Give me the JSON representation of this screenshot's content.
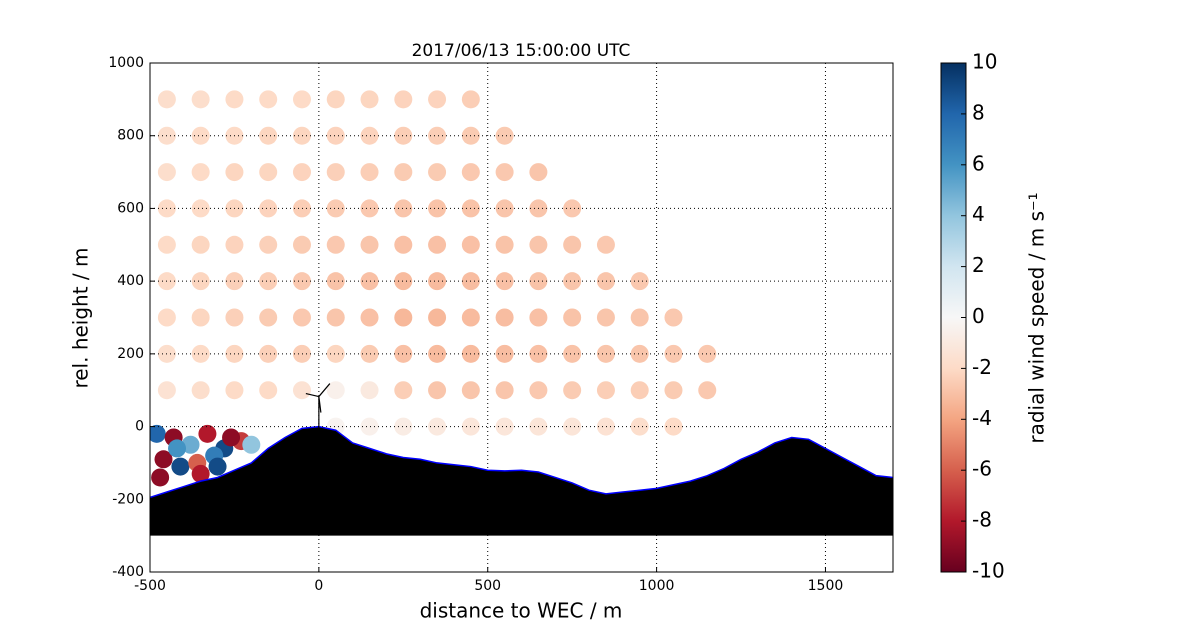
{
  "chart_data": {
    "type": "scatter",
    "title": "2017/06/13 15:00:00 UTC",
    "x_label": "distance to WEC / m",
    "y_label": "rel. height / m",
    "colorbar_label": "radial wind speed / m s⁻¹",
    "xlim": [
      -500,
      1700
    ],
    "ylim": [
      -400,
      1000
    ],
    "xticks": [
      -500,
      0,
      500,
      1000,
      1500
    ],
    "yticks": [
      -400,
      -200,
      0,
      200,
      400,
      600,
      800,
      1000
    ],
    "grid": true,
    "clim": [
      -10,
      10
    ],
    "cticks": [
      -10,
      -8,
      -6,
      -4,
      -2,
      0,
      2,
      4,
      6,
      8,
      10
    ],
    "colormap": [
      "#67001f",
      "#b2182b",
      "#d6604d",
      "#f4a582",
      "#fddbc7",
      "#f7f7f7",
      "#d1e5f0",
      "#92c5de",
      "#4393c3",
      "#2166ac",
      "#053061"
    ],
    "points": {
      "x": [
        -450,
        -350,
        -250,
        -150,
        -50,
        50,
        150,
        250,
        350,
        450,
        -450,
        -350,
        -250,
        -150,
        -50,
        50,
        150,
        250,
        350,
        450,
        550,
        -450,
        -350,
        -250,
        -150,
        -50,
        50,
        150,
        250,
        350,
        450,
        550,
        650,
        -450,
        -350,
        -250,
        -150,
        -50,
        50,
        150,
        250,
        350,
        450,
        550,
        650,
        750,
        -450,
        -350,
        -250,
        -150,
        -50,
        50,
        150,
        250,
        350,
        450,
        550,
        650,
        750,
        850,
        -450,
        -350,
        -250,
        -150,
        -50,
        50,
        150,
        250,
        350,
        450,
        550,
        650,
        750,
        850,
        950,
        -450,
        -350,
        -250,
        -150,
        -50,
        50,
        150,
        250,
        350,
        450,
        550,
        650,
        750,
        850,
        950,
        1050,
        -450,
        -350,
        -250,
        -150,
        -50,
        50,
        150,
        250,
        350,
        450,
        550,
        650,
        750,
        850,
        950,
        1050,
        1150,
        -450,
        -350,
        -250,
        -150,
        -50,
        50,
        150,
        250,
        350,
        450,
        550,
        650,
        750,
        850,
        950,
        1050,
        1150,
        50,
        150,
        250,
        350,
        450,
        550,
        650,
        750,
        850,
        950,
        1050,
        -480,
        -430,
        -380,
        -330,
        -280,
        -230,
        -460,
        -410,
        -360,
        -310,
        -260,
        -200,
        -470,
        -420,
        -350,
        -300
      ],
      "y": [
        900,
        900,
        900,
        900,
        900,
        900,
        900,
        900,
        900,
        900,
        800,
        800,
        800,
        800,
        800,
        800,
        800,
        800,
        800,
        800,
        800,
        700,
        700,
        700,
        700,
        700,
        700,
        700,
        700,
        700,
        700,
        700,
        700,
        600,
        600,
        600,
        600,
        600,
        600,
        600,
        600,
        600,
        600,
        600,
        600,
        600,
        500,
        500,
        500,
        500,
        500,
        500,
        500,
        500,
        500,
        500,
        500,
        500,
        500,
        500,
        400,
        400,
        400,
        400,
        400,
        400,
        400,
        400,
        400,
        400,
        400,
        400,
        400,
        400,
        400,
        300,
        300,
        300,
        300,
        300,
        300,
        300,
        300,
        300,
        300,
        300,
        300,
        300,
        300,
        300,
        300,
        200,
        200,
        200,
        200,
        200,
        200,
        200,
        200,
        200,
        200,
        200,
        200,
        200,
        200,
        200,
        200,
        200,
        100,
        100,
        100,
        100,
        100,
        100,
        100,
        100,
        100,
        100,
        100,
        100,
        100,
        100,
        100,
        100,
        100,
        0,
        0,
        0,
        0,
        0,
        0,
        0,
        0,
        0,
        0,
        0,
        -20,
        -30,
        -50,
        -20,
        -60,
        -40,
        -90,
        -110,
        -100,
        -80,
        -30,
        -50,
        -140,
        -60,
        -130,
        -110
      ],
      "values": [
        -1.8,
        -1.8,
        -2,
        -2,
        -2,
        -2.2,
        -2.2,
        -2.3,
        -2.3,
        -2.5,
        -1.8,
        -2,
        -2,
        -2.2,
        -2.2,
        -2.3,
        -2.3,
        -2.5,
        -2.5,
        -2.6,
        -2.6,
        -1.8,
        -2,
        -2.2,
        -2.2,
        -2.3,
        -2.4,
        -2.5,
        -2.6,
        -2.6,
        -2.7,
        -2.7,
        -2.8,
        -2,
        -2,
        -2.2,
        -2.3,
        -2.5,
        -2.6,
        -2.7,
        -2.8,
        -2.9,
        -2.9,
        -2.8,
        -2.8,
        -2.7,
        -2,
        -2.2,
        -2.3,
        -2.4,
        -2.6,
        -2.7,
        -2.8,
        -3,
        -3,
        -3,
        -2.9,
        -2.8,
        -2.8,
        -2.7,
        -2,
        -2.2,
        -2.4,
        -2.5,
        -2.7,
        -2.9,
        -3,
        -3.2,
        -3.2,
        -3.1,
        -3,
        -2.9,
        -2.8,
        -2.8,
        -2.7,
        -2,
        -2.2,
        -2.4,
        -2.6,
        -2.7,
        -2.8,
        -3,
        -3.3,
        -3.3,
        -3.2,
        -3.1,
        -3,
        -2.9,
        -2.8,
        -2.8,
        -2.7,
        -1.8,
        -2,
        -2.2,
        -2.4,
        -2.5,
        -2.2,
        -2.6,
        -3,
        -3.2,
        -3.2,
        -3.1,
        -3,
        -2.9,
        -2.8,
        -2.8,
        -2.7,
        -2.7,
        -1.5,
        -1.8,
        -2,
        -2,
        -1.5,
        -0.5,
        -1,
        -2.5,
        -2.8,
        -2.8,
        -2.8,
        -2.7,
        -2.6,
        -2.5,
        -2.5,
        -2.6,
        -2.7,
        -0.3,
        -0.5,
        -0.8,
        -1,
        -1.2,
        -1.2,
        -1.3,
        -1.3,
        -1.5,
        -1.8,
        -2,
        8,
        -9,
        5,
        -8,
        9,
        -7,
        -9,
        9,
        -6,
        7,
        -9,
        4,
        -9,
        6,
        -8,
        9
      ]
    },
    "terrain": {
      "color": "#000000",
      "edge_color": "#0000ff",
      "base": -300,
      "x": [
        -500,
        -450,
        -400,
        -350,
        -300,
        -250,
        -200,
        -150,
        -100,
        -50,
        0,
        50,
        100,
        150,
        200,
        250,
        300,
        350,
        400,
        450,
        500,
        550,
        600,
        650,
        700,
        750,
        800,
        850,
        900,
        950,
        1000,
        1050,
        1100,
        1150,
        1200,
        1250,
        1300,
        1350,
        1400,
        1450,
        1500,
        1550,
        1600,
        1650,
        1700
      ],
      "y": [
        -195,
        -180,
        -165,
        -150,
        -140,
        -120,
        -100,
        -60,
        -30,
        -5,
        0,
        -10,
        -45,
        -60,
        -75,
        -85,
        -90,
        -100,
        -105,
        -110,
        -120,
        -122,
        -120,
        -125,
        -140,
        -155,
        -175,
        -185,
        -180,
        -175,
        -170,
        -160,
        -150,
        -135,
        -115,
        -90,
        -70,
        -45,
        -30,
        -35,
        -60,
        -85,
        -110,
        -135,
        -140
      ]
    }
  }
}
